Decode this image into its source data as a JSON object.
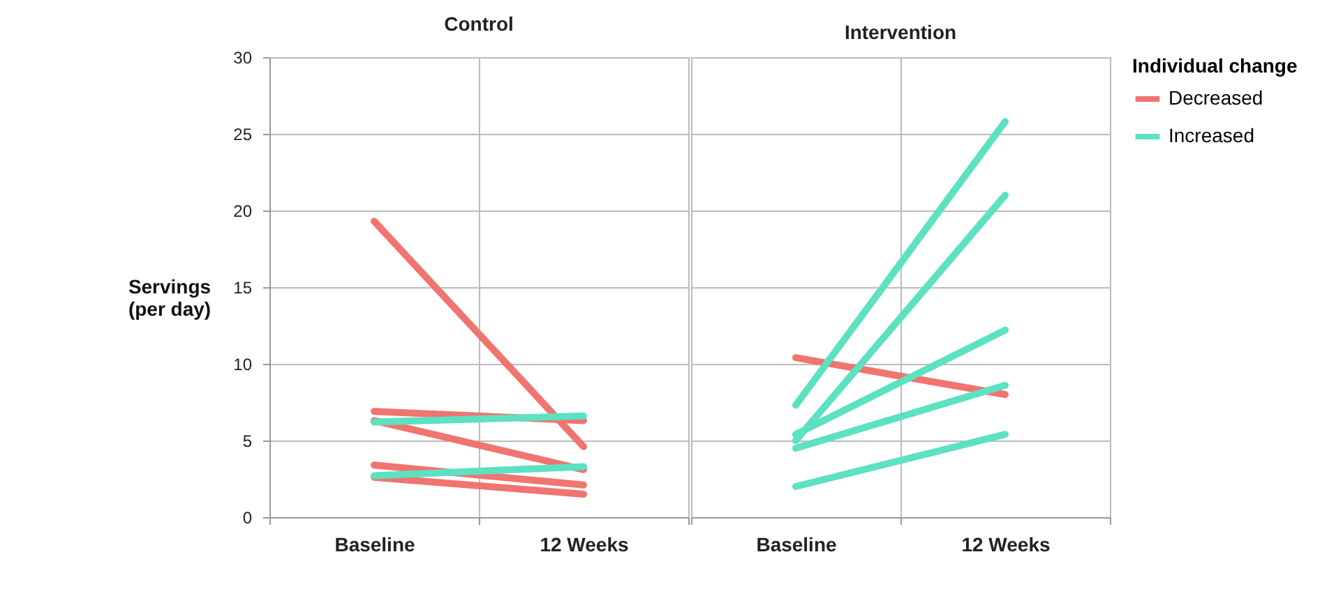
{
  "chart_data": [
    {
      "type": "line",
      "title": "Control",
      "ylabel": "Servings (per day)",
      "categories": [
        "Baseline",
        "12 Weeks"
      ],
      "ylim": [
        0,
        30
      ],
      "yticks": [
        0,
        5,
        10,
        15,
        20,
        25,
        30
      ],
      "grid": "y",
      "line_style": "solid",
      "marker": "none",
      "series": [
        {
          "color": "#f07470",
          "values": [
            19.3,
            4.6
          ]
        },
        {
          "color": "#f07470",
          "values": [
            6.9,
            6.3
          ]
        },
        {
          "color": "#f07470",
          "values": [
            6.3,
            3.1
          ]
        },
        {
          "color": "#5ce1c1",
          "values": [
            6.2,
            6.6
          ]
        },
        {
          "color": "#f07470",
          "values": [
            3.4,
            2.1
          ]
        },
        {
          "color": "#f07470",
          "values": [
            2.6,
            1.5
          ]
        },
        {
          "color": "#5ce1c1",
          "values": [
            2.7,
            3.3
          ]
        }
      ]
    },
    {
      "type": "line",
      "title": "Intervention",
      "legend_title": "Individual change",
      "categories": [
        "Baseline",
        "12 Weeks"
      ],
      "ylim": [
        0,
        30
      ],
      "yticks": [
        0,
        5,
        10,
        15,
        20,
        25,
        30
      ],
      "grid": "y",
      "legend": "right",
      "tick_labels": "x",
      "line_style": "solid",
      "marker": "none",
      "series": [
        {
          "name": "Decreased",
          "color": "#f07470",
          "values": [
            10.4,
            8.0
          ]
        },
        {
          "name": "Increased",
          "color": "#5ce1c1",
          "values": [
            7.3,
            25.8
          ]
        },
        {
          "color": "#5ce1c1",
          "values": [
            5.0,
            21.0
          ]
        },
        {
          "color": "#5ce1c1",
          "values": [
            5.4,
            12.2
          ]
        },
        {
          "color": "#5ce1c1",
          "values": [
            4.5,
            8.6
          ]
        },
        {
          "color": "#5ce1c1",
          "values": [
            2.0,
            5.4
          ]
        }
      ]
    }
  ]
}
